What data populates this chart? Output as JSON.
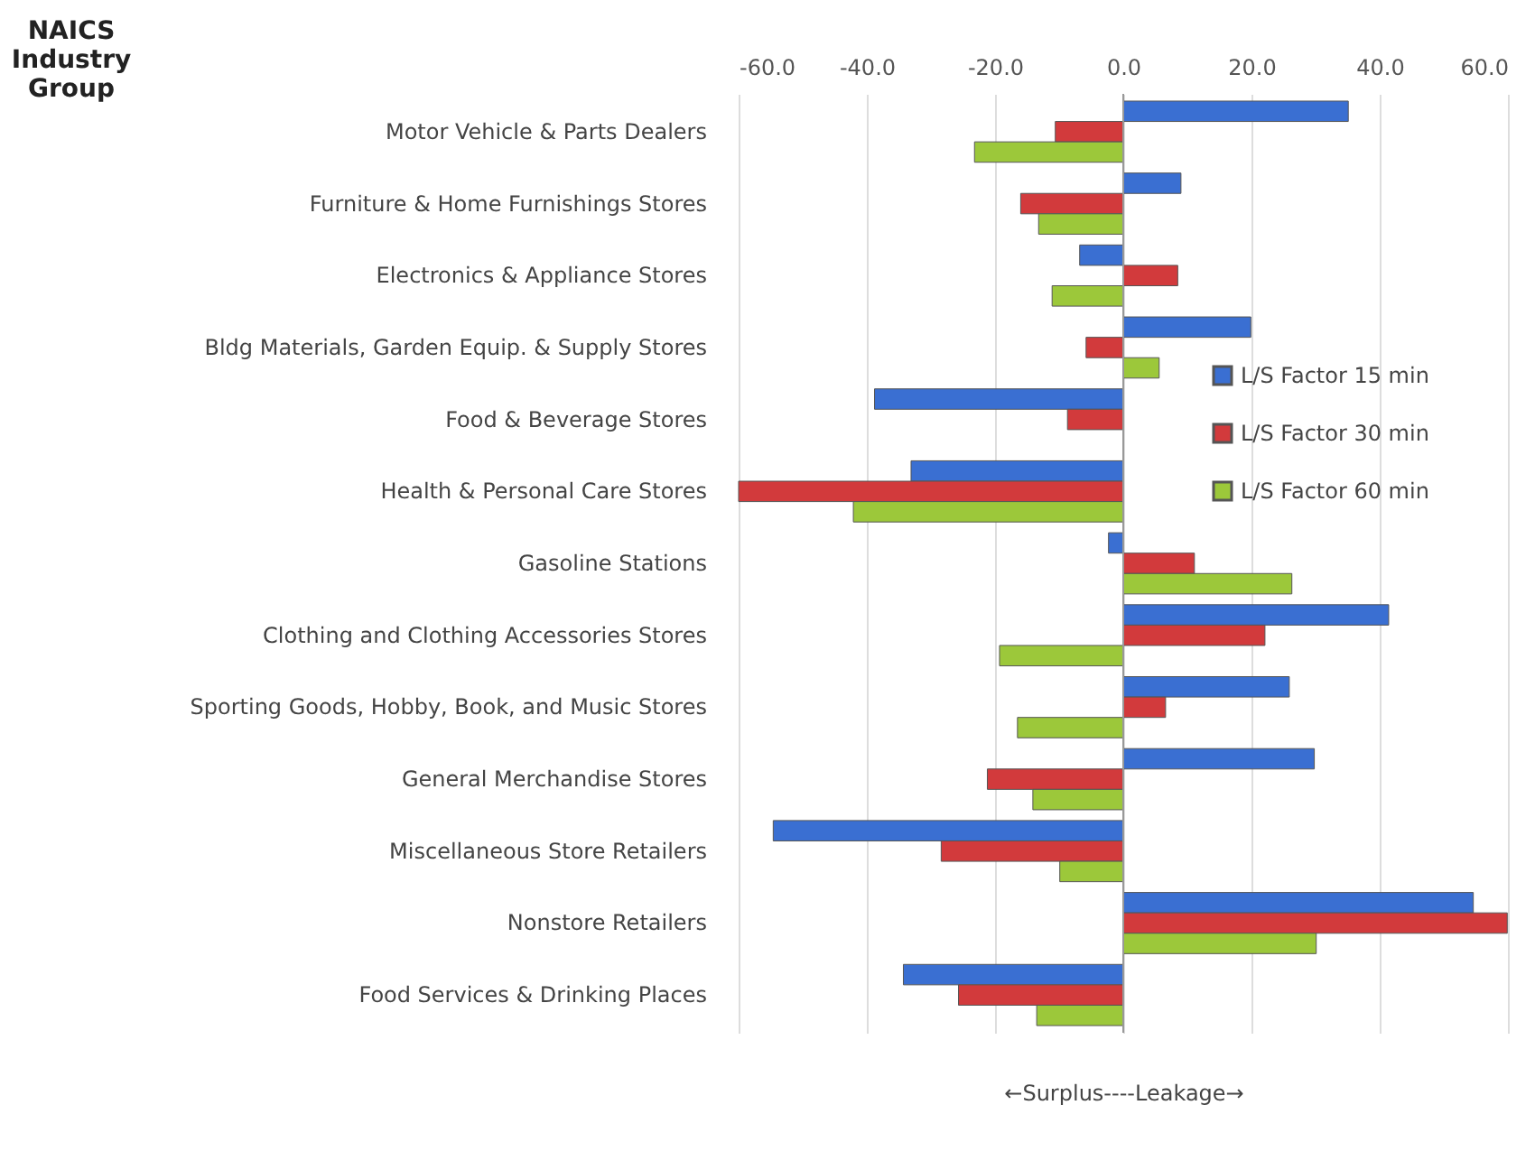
{
  "chart_data": {
    "type": "bar",
    "orientation": "horizontal",
    "ylabel": "NAICS Industry Group",
    "xlabel": "←Surplus----Leakage→",
    "categories": [
      "Motor Vehicle & Parts Dealers",
      "Furniture & Home Furnishings Stores",
      "Electronics & Appliance Stores",
      "Bldg Materials, Garden Equip. & Supply Stores",
      "Food & Beverage Stores",
      "Health & Personal Care Stores",
      "Gasoline Stations",
      "Clothing and Clothing Accessories Stores",
      "Sporting Goods, Hobby, Book, and Music Stores",
      "General Merchandise Stores",
      "Miscellaneous Store Retailers",
      "Nonstore Retailers",
      "Food Services & Drinking Places"
    ],
    "series": [
      {
        "name": "L/S Factor 15 min",
        "color": "#3a6fd2",
        "values": [
          35.1,
          9.0,
          -6.8,
          19.9,
          -38.8,
          -33.1,
          -2.3,
          41.4,
          25.9,
          29.8,
          -54.6,
          54.6,
          -34.3
        ]
      },
      {
        "name": "L/S Factor 30 min",
        "color": "#d23a3c",
        "values": [
          -10.6,
          -16.0,
          8.5,
          -5.8,
          -8.7,
          -60.0,
          11.1,
          22.1,
          6.6,
          -21.2,
          -28.4,
          59.9,
          -25.7
        ]
      },
      {
        "name": "L/S Factor 60 min",
        "color": "#9cc83a",
        "values": [
          -23.2,
          -13.2,
          -11.1,
          5.6,
          null,
          -42.1,
          26.3,
          -19.3,
          -16.5,
          -14.1,
          -9.9,
          30.1,
          -13.5
        ]
      }
    ],
    "xlim": [
      -60,
      60
    ],
    "xticks": [
      {
        "value": -60,
        "label": "-60.0"
      },
      {
        "value": -40,
        "label": "-40.0"
      },
      {
        "value": -20,
        "label": "-20.0"
      },
      {
        "value": 0,
        "label": "0.0"
      },
      {
        "value": 20,
        "label": "20.0"
      },
      {
        "value": 40,
        "label": "40.0"
      },
      {
        "value": 60,
        "label": "60.0"
      }
    ],
    "grid": "x",
    "legend": "right"
  }
}
